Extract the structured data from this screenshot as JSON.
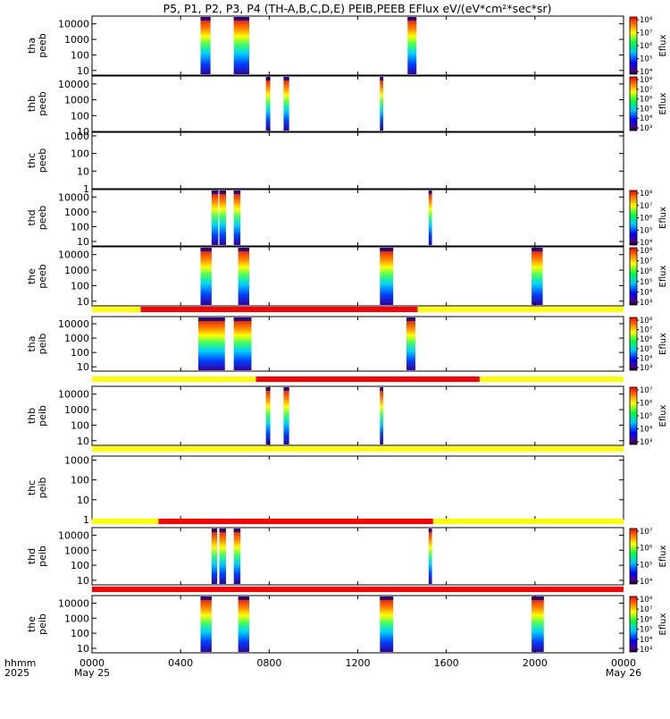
{
  "chart_data": {
    "type": "heatmap",
    "title": "P5, P1, P2, P3, P4 (TH-A,B,C,D,E) PEIB,PEEB EFlux eV/(eV*cm²*sec*sr)",
    "time_axis": {
      "label_top": "hhmm",
      "label_bottom": "2025",
      "range_hours": [
        0,
        24
      ],
      "ticks": [
        {
          "hour": 0,
          "label": "0000",
          "sub": "May 25"
        },
        {
          "hour": 4,
          "label": "0400",
          "sub": ""
        },
        {
          "hour": 8,
          "label": "0800",
          "sub": ""
        },
        {
          "hour": 12,
          "label": "1200",
          "sub": ""
        },
        {
          "hour": 16,
          "label": "1600",
          "sub": ""
        },
        {
          "hour": 20,
          "label": "2000",
          "sub": ""
        },
        {
          "hour": 24,
          "label": "0000",
          "sub": "May 26"
        }
      ]
    },
    "colorbar_label": "Eflux",
    "panels": [
      {
        "probe": "tha",
        "inst": "peeb",
        "yticks": [
          "10",
          "100",
          "1000",
          "10000"
        ],
        "ylog": [
          0.7,
          4.5
        ],
        "cbar": [
          "10⁴",
          "10⁵",
          "10⁶",
          "10⁷",
          "10⁸"
        ],
        "blocks": [
          [
            4.9,
            5.35
          ],
          [
            6.4,
            7.1
          ],
          [
            14.25,
            14.65
          ]
        ]
      },
      {
        "probe": "thb",
        "inst": "peeb",
        "yticks": [
          "10",
          "100",
          "1000",
          "10000"
        ],
        "ylog": [
          1,
          4.5
        ],
        "cbar": [
          "10³",
          "10⁴",
          "10⁵",
          "10⁶",
          "10⁷",
          "10⁸"
        ],
        "blocks": [
          [
            7.85,
            8.05
          ],
          [
            8.65,
            8.9
          ],
          [
            13.0,
            13.15
          ]
        ]
      },
      {
        "probe": "thc",
        "inst": "peeb",
        "yticks": [
          "1",
          "10",
          "100",
          "1000"
        ],
        "ylog": [
          0,
          3.2
        ],
        "cbar": [],
        "blocks": []
      },
      {
        "probe": "thd",
        "inst": "peeb",
        "yticks": [
          "10",
          "100",
          "1000",
          "10000"
        ],
        "ylog": [
          0.7,
          4.5
        ],
        "cbar": [
          "10⁴",
          "10⁵",
          "10⁶",
          "10⁷",
          "10⁸"
        ],
        "blocks": [
          [
            5.4,
            5.7
          ],
          [
            5.75,
            6.05
          ],
          [
            6.4,
            6.7
          ],
          [
            15.2,
            15.35
          ]
        ]
      },
      {
        "probe": "the",
        "inst": "peeb",
        "yticks": [
          "10",
          "100",
          "1000",
          "10000"
        ],
        "ylog": [
          0.7,
          4.5
        ],
        "cbar": [
          "10³",
          "10⁴",
          "10⁵",
          "10⁶",
          "10⁷",
          "10⁸"
        ],
        "blocks": [
          [
            4.9,
            5.4
          ],
          [
            6.6,
            7.1
          ],
          [
            13.0,
            13.6
          ],
          [
            19.85,
            20.35
          ]
        ]
      },
      {
        "probe": "tha",
        "inst": "peib",
        "yticks": [
          "10",
          "100",
          "1000",
          "10000"
        ],
        "ylog": [
          0.7,
          4.5
        ],
        "cbar": [
          "10³",
          "10⁴",
          "10⁵",
          "10⁶",
          "10⁷",
          "10⁸"
        ],
        "blocks": [
          [
            4.8,
            6.0
          ],
          [
            6.4,
            7.2
          ],
          [
            14.2,
            14.6
          ]
        ]
      },
      {
        "probe": "thb",
        "inst": "peib",
        "yticks": [
          "10",
          "100",
          "1000",
          "10000"
        ],
        "ylog": [
          0.7,
          4.5
        ],
        "cbar": [
          "10³",
          "10⁴",
          "10⁵",
          "10⁶",
          "10⁷"
        ],
        "blocks": [
          [
            7.85,
            8.05
          ],
          [
            8.65,
            8.9
          ],
          [
            13.0,
            13.15
          ]
        ]
      },
      {
        "probe": "thc",
        "inst": "peib",
        "yticks": [
          "1",
          "10",
          "100",
          "1000"
        ],
        "ylog": [
          0,
          3.2
        ],
        "cbar": [],
        "blocks": []
      },
      {
        "probe": "thd",
        "inst": "peib",
        "yticks": [
          "10",
          "100",
          "1000",
          "10000"
        ],
        "ylog": [
          0.7,
          4.5
        ],
        "cbar": [
          "10⁴",
          "10⁵",
          "10⁶",
          "10⁷"
        ],
        "blocks": [
          [
            5.4,
            5.65
          ],
          [
            5.75,
            6.05
          ],
          [
            6.4,
            6.7
          ],
          [
            15.2,
            15.35
          ]
        ]
      },
      {
        "probe": "the",
        "inst": "peib",
        "yticks": [
          "10",
          "100",
          "1000",
          "10000"
        ],
        "ylog": [
          0.7,
          4.5
        ],
        "cbar": [
          "10³",
          "10⁴",
          "10⁵",
          "10⁶",
          "10⁷",
          "10⁸"
        ],
        "blocks": [
          [
            4.9,
            5.4
          ],
          [
            6.6,
            7.1
          ],
          [
            13.0,
            13.6
          ],
          [
            19.85,
            20.4
          ]
        ]
      }
    ],
    "status_bars": [
      {
        "after_panel": 4,
        "red": [
          2.2,
          14.7
        ]
      },
      {
        "after_panel": 5,
        "red": [
          7.4,
          17.5
        ]
      },
      {
        "after_panel": 6,
        "red": []
      },
      {
        "after_panel": 7,
        "red": [
          3.0,
          15.4
        ]
      },
      {
        "after_panel": 8,
        "red": [
          0,
          24
        ]
      }
    ],
    "colors": {
      "status_yellow": "#ffff00",
      "status_red": "#ff0000"
    }
  }
}
